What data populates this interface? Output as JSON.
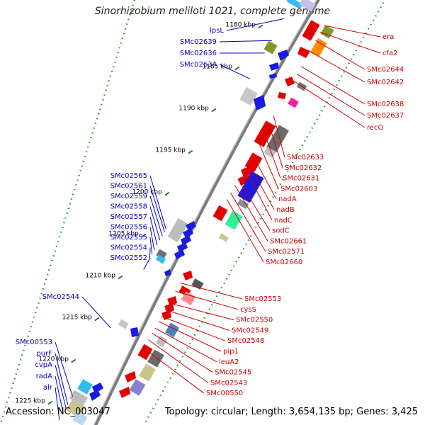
{
  "title": "Sinorhizobium meliloti 1021, complete genome",
  "footer": {
    "accession": "Accession: NC_003047",
    "topology": "Topology: circular; Length: 3,654,135 bp; Genes: 3,425"
  },
  "colors": {
    "left_label": "#0000cc",
    "right_label": "#cc0000",
    "backbone": "#8a8a8a",
    "tick_minor": "#33aa33",
    "tick_major": "#2a7a2a"
  },
  "kbp_ticks": [
    {
      "label": "1180 kbp",
      "kbp": 1180
    },
    {
      "label": "1185 kbp",
      "kbp": 1185
    },
    {
      "label": "1190 kbp",
      "kbp": 1190
    },
    {
      "label": "1195 kbp",
      "kbp": 1195
    },
    {
      "label": "1200 kbp",
      "kbp": 1200
    },
    {
      "label": "1205 kbp",
      "kbp": 1205
    },
    {
      "label": "1210 kbp",
      "kbp": 1210
    },
    {
      "label": "1215 kbp",
      "kbp": 1215
    },
    {
      "label": "1220 kbp",
      "kbp": 1220
    },
    {
      "label": "1225 kbp",
      "kbp": 1225
    }
  ],
  "left_genes": [
    {
      "name": "lpsL",
      "pos": 1179.4
    },
    {
      "name": "SMc02639",
      "pos": 1182.0
    },
    {
      "name": "SMc02636",
      "pos": 1183.5
    },
    {
      "name": "SMc02634",
      "pos": 1186.6
    },
    {
      "name": "SMc02565",
      "pos": 1204.6
    },
    {
      "name": "SMc02561",
      "pos": 1204.9
    },
    {
      "name": "SMc02559",
      "pos": 1205.4
    },
    {
      "name": "SMc02558",
      "pos": 1205.9
    },
    {
      "name": "SMc02557",
      "pos": 1206.5
    },
    {
      "name": "SMc02556",
      "pos": 1207.1
    },
    {
      "name": "SMc02555",
      "pos": 1207.6
    },
    {
      "name": "SMc02554",
      "pos": 1208.1
    },
    {
      "name": "SMc02552",
      "pos": 1209.4
    },
    {
      "name": "SMc02544",
      "pos": 1216.4
    },
    {
      "name": "SMc00553",
      "pos": 1224.6
    },
    {
      "name": "purF",
      "pos": 1225.6
    },
    {
      "name": "cvpA",
      "pos": 1226.0
    },
    {
      "name": "radA",
      "pos": 1226.6
    },
    {
      "name": "alr",
      "pos": 1227.4
    }
  ],
  "right_genes": [
    {
      "name": "era",
      "pos": 1180.2
    },
    {
      "name": "cfa2",
      "pos": 1181.0
    },
    {
      "name": "SMc02644",
      "pos": 1182.0
    },
    {
      "name": "SMc02642",
      "pos": 1183.3
    },
    {
      "name": "SMc02638",
      "pos": 1185.1
    },
    {
      "name": "SMc02637",
      "pos": 1186.0
    },
    {
      "name": "recO",
      "pos": 1186.8
    },
    {
      "name": "SMc02633",
      "pos": 1191.0
    },
    {
      "name": "SMc02632",
      "pos": 1192.0
    },
    {
      "name": "SMc02631",
      "pos": 1193.0
    },
    {
      "name": "SMc02603",
      "pos": 1194.2
    },
    {
      "name": "nadA",
      "pos": 1195.6
    },
    {
      "name": "nadB",
      "pos": 1196.5
    },
    {
      "name": "nadC",
      "pos": 1197.2
    },
    {
      "name": "sodC",
      "pos": 1198.6
    },
    {
      "name": "SMc02661",
      "pos": 1199.3
    },
    {
      "name": "SMc02571",
      "pos": 1200.2
    },
    {
      "name": "SMc02660",
      "pos": 1201.0
    },
    {
      "name": "SMc02553",
      "pos": 1211.0
    },
    {
      "name": "cysS",
      "pos": 1212.0
    },
    {
      "name": "SMc02550",
      "pos": 1213.4
    },
    {
      "name": "SMc02549",
      "pos": 1214.2
    },
    {
      "name": "SMc02548",
      "pos": 1215.0
    },
    {
      "name": "pip1",
      "pos": 1215.6
    },
    {
      "name": "leuA2",
      "pos": 1216.4
    },
    {
      "name": "SMc02545",
      "pos": 1217.0
    },
    {
      "name": "SMc02543",
      "pos": 1217.8
    },
    {
      "name": "SMc00550",
      "pos": 1218.8
    }
  ]
}
